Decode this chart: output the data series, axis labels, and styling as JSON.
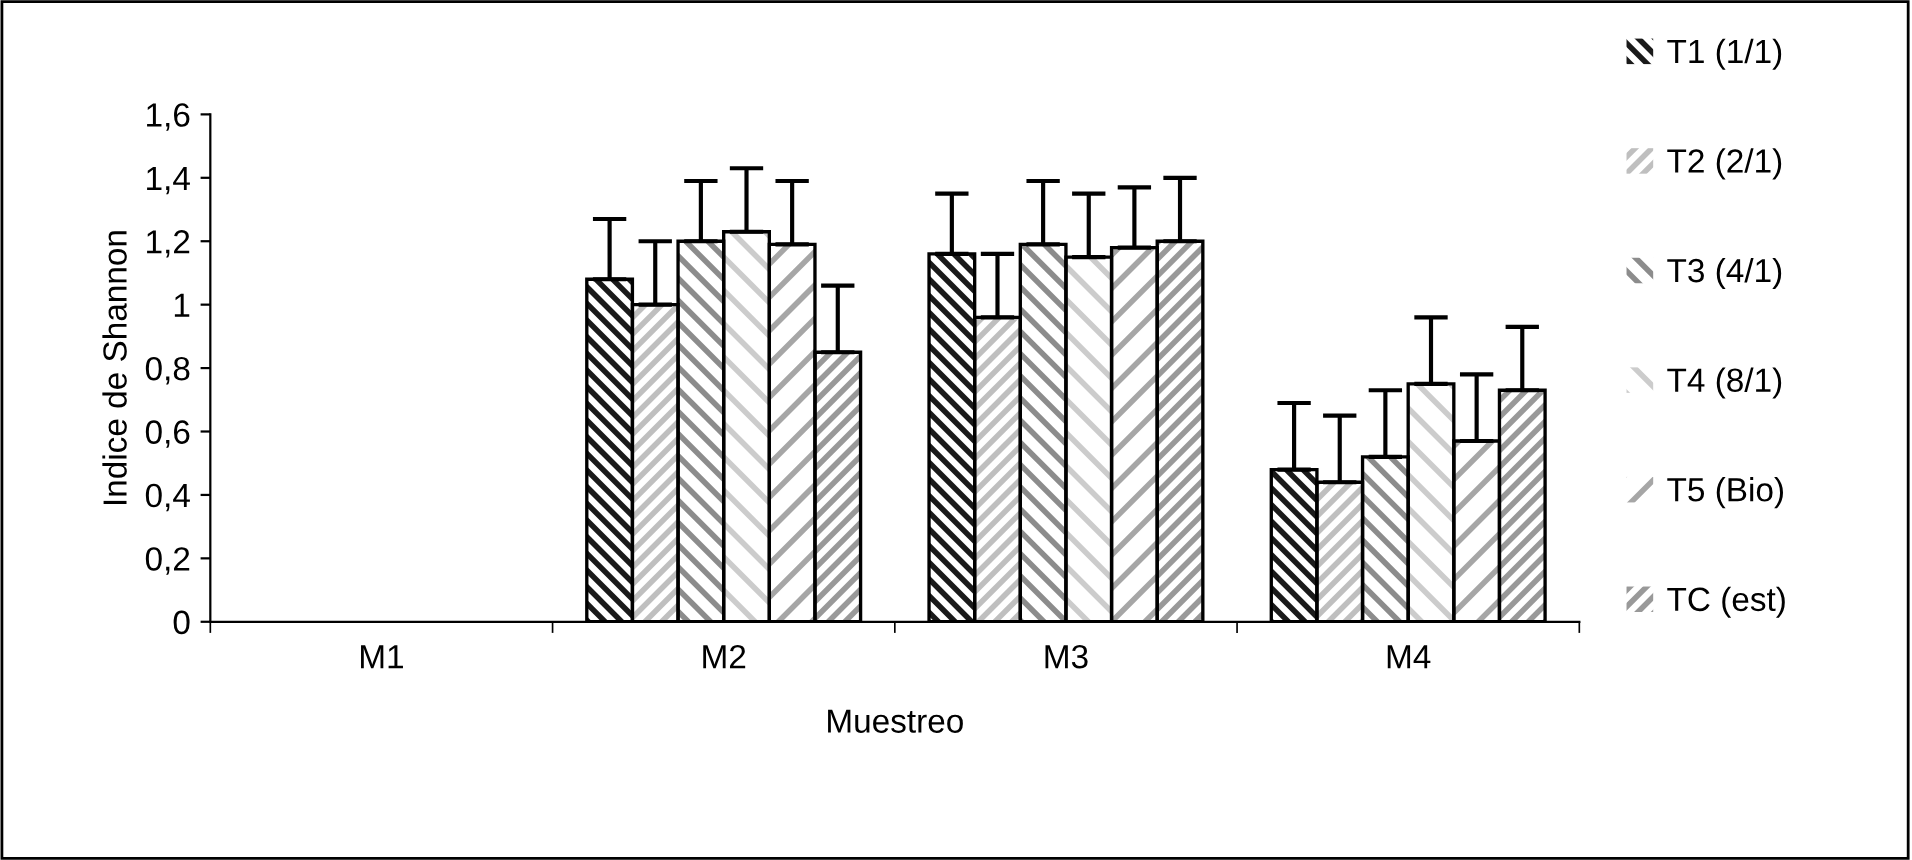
{
  "chart_data": {
    "type": "bar",
    "xlabel": "Muestreo",
    "ylabel": "Indice de Shannon",
    "categories": [
      "M1",
      "M2",
      "M3",
      "M4"
    ],
    "series": [
      {
        "name": "T1 (1/1)",
        "color": "#1a1a1a",
        "values": [
          null,
          1.08,
          1.16,
          0.48
        ],
        "errors": [
          null,
          [
            1.08,
            1.27
          ],
          [
            1.16,
            1.35
          ],
          [
            0.48,
            0.69
          ]
        ]
      },
      {
        "name": "T2 (2/1)",
        "color": "#bfbfbf",
        "values": [
          null,
          1.0,
          0.96,
          0.44
        ],
        "errors": [
          null,
          [
            1.0,
            1.2
          ],
          [
            0.96,
            1.16
          ],
          [
            0.44,
            0.65
          ]
        ]
      },
      {
        "name": "T3 (4/1)",
        "color": "#8c8c8c",
        "values": [
          null,
          1.2,
          1.19,
          0.52
        ],
        "errors": [
          null,
          [
            1.2,
            1.39
          ],
          [
            1.19,
            1.39
          ],
          [
            0.52,
            0.73
          ]
        ]
      },
      {
        "name": "T4 (8/1)",
        "color": "#cccccc",
        "values": [
          null,
          1.23,
          1.15,
          0.75
        ],
        "errors": [
          null,
          [
            1.23,
            1.43
          ],
          [
            1.15,
            1.35
          ],
          [
            0.75,
            0.96
          ]
        ]
      },
      {
        "name": "T5 (Bio)",
        "color": "#a6a6a6",
        "values": [
          null,
          1.19,
          1.18,
          0.57
        ],
        "errors": [
          null,
          [
            1.19,
            1.39
          ],
          [
            1.18,
            1.37
          ],
          [
            0.57,
            0.78
          ]
        ]
      },
      {
        "name": "TC (est)",
        "color": "#999999",
        "values": [
          null,
          0.85,
          1.2,
          0.73
        ],
        "errors": [
          null,
          [
            0.85,
            1.06
          ],
          [
            1.2,
            1.4
          ],
          [
            0.73,
            0.93
          ]
        ]
      }
    ],
    "ylim": [
      0,
      1.6
    ],
    "yticks": [
      0,
      {
        "value": 0.2,
        "label": "0,2"
      },
      {
        "value": 0.4,
        "label": "0,4"
      },
      {
        "value": 0.6,
        "label": "0,6"
      },
      {
        "value": 0.8,
        "label": "0,8"
      },
      {
        "value": 1,
        "label": "1"
      },
      {
        "value": 1.2,
        "label": "1,2"
      },
      {
        "value": 1.4,
        "label": "1,4"
      },
      {
        "value": 1.6,
        "label": "1,6"
      }
    ],
    "grid": false,
    "legend": "right"
  }
}
